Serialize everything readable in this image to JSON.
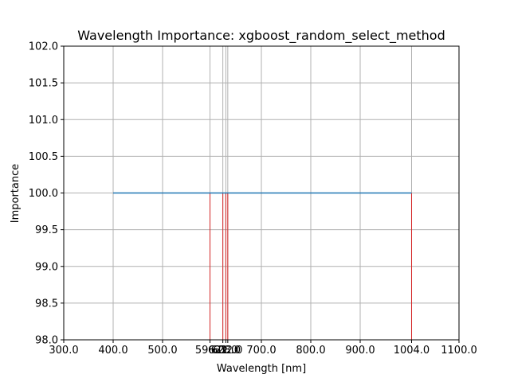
{
  "chart_data": {
    "type": "line",
    "title": "Wavelength Importance: xgboost_random_select_method",
    "xlabel": "Wavelength [nm]",
    "ylabel": "Importance",
    "xlim": [
      300,
      1100
    ],
    "ylim": [
      98,
      102
    ],
    "grid": true,
    "series": [
      {
        "x": [
          400,
          1004
        ],
        "y": [
          100,
          100
        ]
      }
    ],
    "selected_wavelengths": [
      596.0,
      622.0,
      628.0,
      632.0,
      1004.0
    ],
    "x_ticks": [
      {
        "value": 300,
        "label": "300.0"
      },
      {
        "value": 400,
        "label": "400.0"
      },
      {
        "value": 500,
        "label": "500.0"
      },
      {
        "value": 596,
        "label": "596.0"
      },
      {
        "value": 622,
        "label": "622.0"
      },
      {
        "value": 628,
        "label": "628.0"
      },
      {
        "value": 632,
        "label": "632.0"
      },
      {
        "value": 700,
        "label": "700.0"
      },
      {
        "value": 800,
        "label": "800.0"
      },
      {
        "value": 900,
        "label": "900.0"
      },
      {
        "value": 1004,
        "label": "1004.0"
      },
      {
        "value": 1100,
        "label": "1100.0"
      }
    ],
    "y_ticks": [
      {
        "value": 98.0,
        "label": "98.0"
      },
      {
        "value": 98.5,
        "label": "98.5"
      },
      {
        "value": 99.0,
        "label": "99.0"
      },
      {
        "value": 99.5,
        "label": "99.5"
      },
      {
        "value": 100.0,
        "label": "100.0"
      },
      {
        "value": 100.5,
        "label": "100.5"
      },
      {
        "value": 101.0,
        "label": "101.0"
      },
      {
        "value": 101.5,
        "label": "101.5"
      },
      {
        "value": 102.0,
        "label": "102.0"
      }
    ]
  },
  "colors": {
    "line": "#1f77b4",
    "selected_marker": "#d62728",
    "grid": "#b0b0b0",
    "axis": "#000000"
  }
}
